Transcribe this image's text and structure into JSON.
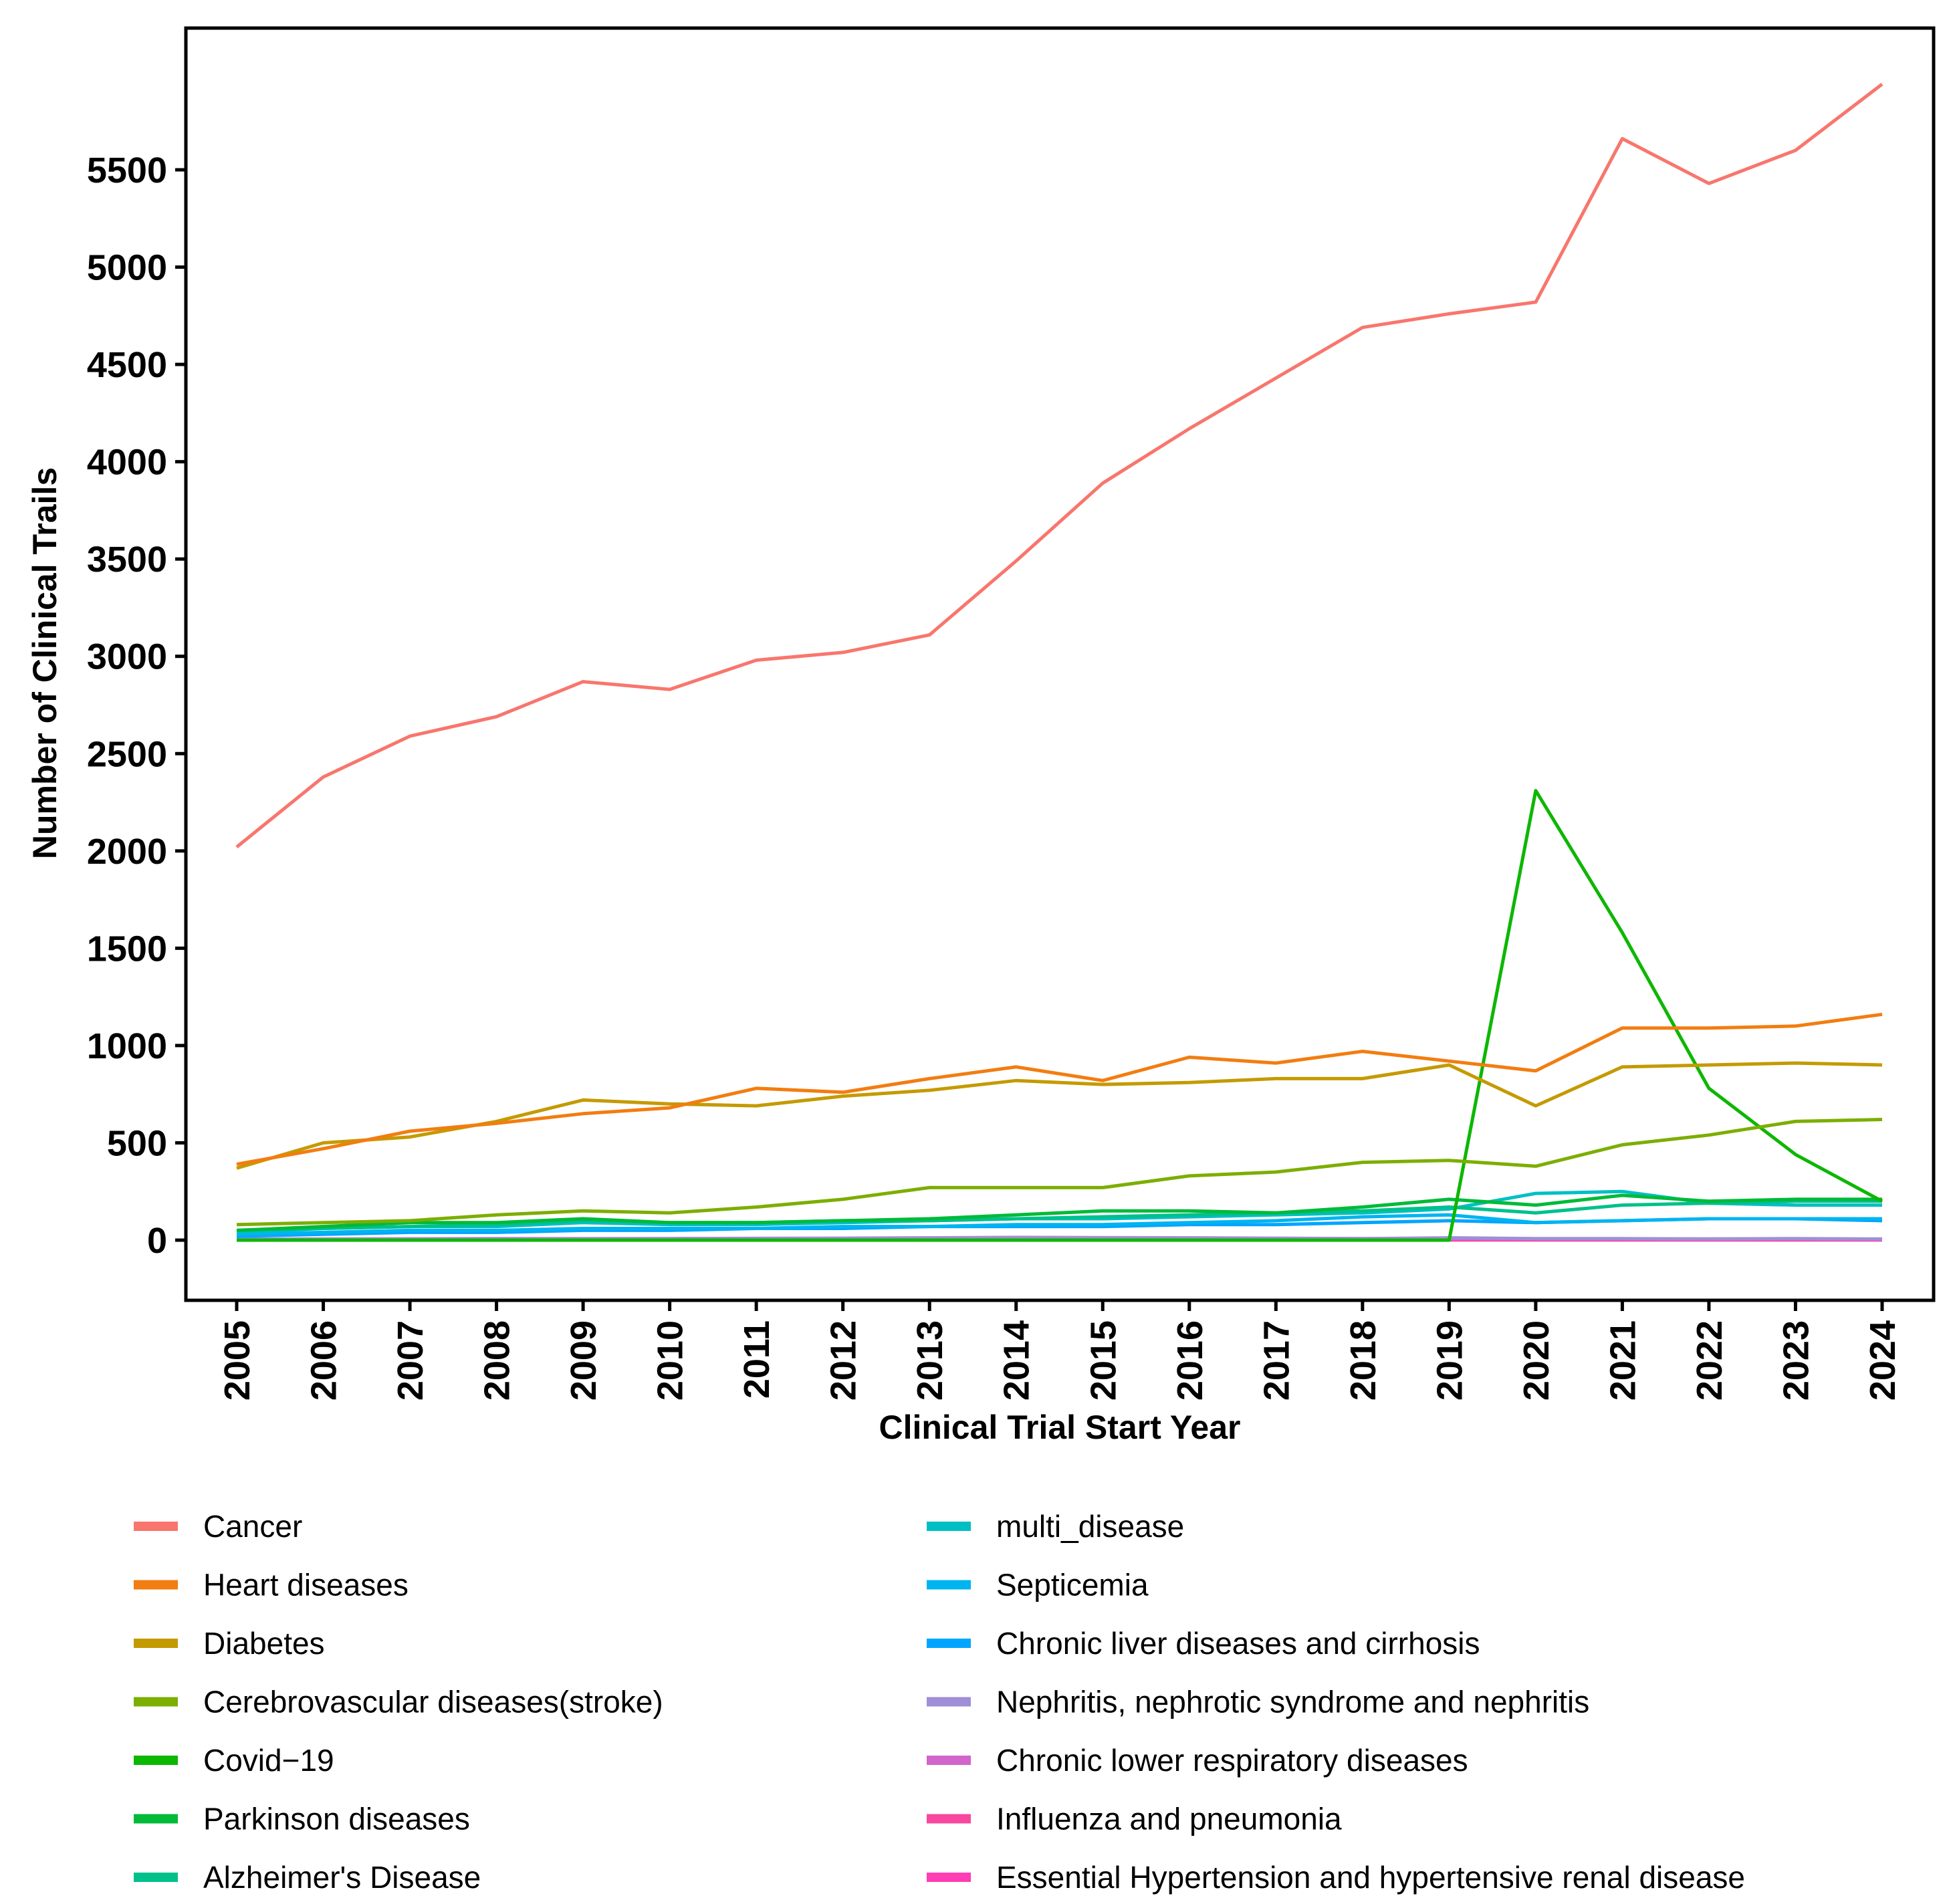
{
  "chart_data": {
    "type": "line",
    "title": "",
    "xlabel": "Clinical Trial Start Year",
    "ylabel": "Number of Clinical Trails",
    "x": [
      2005,
      2006,
      2007,
      2008,
      2009,
      2010,
      2011,
      2012,
      2013,
      2014,
      2015,
      2016,
      2017,
      2018,
      2019,
      2020,
      2021,
      2022,
      2023,
      2024
    ],
    "x_tick_labels": [
      "2005",
      "2006",
      "2007",
      "2008",
      "2009",
      "2010",
      "2011",
      "2012",
      "2013",
      "2014",
      "2015",
      "2016",
      "2017",
      "2018",
      "2019",
      "2020",
      "2021",
      "2022",
      "2023",
      "2024"
    ],
    "y_ticks": [
      0,
      500,
      1000,
      1500,
      2000,
      2500,
      3000,
      3500,
      4000,
      4500,
      5000,
      5500
    ],
    "y_tick_labels": [
      "0",
      "500",
      "1000",
      "1500",
      "2000",
      "2500",
      "3000",
      "3500",
      "4000",
      "4500",
      "5000",
      "5500"
    ],
    "ylim": [
      -300,
      6150
    ],
    "grid": false,
    "legend_position": "bottom",
    "series": [
      {
        "name": "Cancer",
        "color": "#F8766D",
        "values": [
          2020,
          2380,
          2590,
          2690,
          2870,
          2830,
          2980,
          3020,
          3110,
          3490,
          3890,
          4170,
          4430,
          4690,
          4760,
          4820,
          5660,
          5430,
          5600,
          5940
        ]
      },
      {
        "name": "Heart diseases",
        "color": "#F27D10",
        "values": [
          390,
          470,
          560,
          600,
          650,
          680,
          780,
          760,
          830,
          890,
          820,
          940,
          910,
          970,
          920,
          870,
          1090,
          1090,
          1100,
          1160
        ]
      },
      {
        "name": "Diabetes",
        "color": "#C49A00",
        "values": [
          370,
          500,
          530,
          610,
          720,
          700,
          690,
          740,
          770,
          820,
          800,
          810,
          830,
          830,
          900,
          690,
          890,
          900,
          910,
          900
        ]
      },
      {
        "name": "Cerebrovascular diseases(stroke)",
        "color": "#7CAE00",
        "values": [
          80,
          90,
          100,
          130,
          150,
          140,
          170,
          210,
          270,
          270,
          270,
          330,
          350,
          400,
          410,
          380,
          490,
          540,
          610,
          620
        ]
      },
      {
        "name": "Covid−19",
        "color": "#0CB702",
        "values": [
          0,
          0,
          0,
          0,
          0,
          0,
          0,
          0,
          0,
          0,
          0,
          0,
          0,
          0,
          0,
          2310,
          1580,
          780,
          440,
          200
        ]
      },
      {
        "name": "Parkinson diseases",
        "color": "#00BA38",
        "values": [
          50,
          70,
          90,
          90,
          110,
          90,
          90,
          100,
          110,
          130,
          150,
          150,
          140,
          170,
          210,
          180,
          230,
          200,
          210,
          210
        ]
      },
      {
        "name": "Alzheimer's Disease",
        "color": "#00C08B",
        "values": [
          50,
          60,
          70,
          80,
          100,
          90,
          90,
          100,
          100,
          110,
          120,
          130,
          140,
          150,
          170,
          140,
          180,
          190,
          200,
          200
        ]
      },
      {
        "name": "multi_disease",
        "color": "#00BFC4",
        "values": [
          40,
          60,
          70,
          70,
          90,
          80,
          80,
          90,
          100,
          110,
          110,
          120,
          130,
          140,
          160,
          240,
          250,
          190,
          180,
          180
        ]
      },
      {
        "name": "Septicemia",
        "color": "#00B4F0",
        "values": [
          30,
          40,
          50,
          50,
          60,
          60,
          60,
          70,
          70,
          80,
          80,
          90,
          100,
          120,
          130,
          90,
          100,
          110,
          110,
          110
        ]
      },
      {
        "name": "Chronic liver diseases and cirrhosis",
        "color": "#00A5FF",
        "values": [
          20,
          30,
          40,
          40,
          50,
          50,
          60,
          60,
          70,
          70,
          70,
          80,
          80,
          90,
          100,
          90,
          100,
          110,
          110,
          100
        ]
      },
      {
        "name": "Nephritis, nephrotic syndrome and nephritis",
        "color": "#9F8FD6",
        "values": [
          3,
          4,
          5,
          6,
          7,
          8,
          9,
          10,
          12,
          14,
          13,
          12,
          10,
          8,
          12,
          8,
          8,
          6,
          8,
          6
        ]
      },
      {
        "name": "Chronic lower respiratory diseases",
        "color": "#D165CC",
        "values": [
          5,
          6,
          7,
          8,
          8,
          8,
          9,
          9,
          10,
          10,
          10,
          10,
          9,
          8,
          8,
          7,
          6,
          6,
          6,
          5
        ]
      },
      {
        "name": "Influenza and pneumonia",
        "color": "#F8479E",
        "values": [
          3,
          3,
          4,
          4,
          5,
          5,
          5,
          5,
          5,
          5,
          5,
          5,
          5,
          5,
          5,
          5,
          5,
          5,
          5,
          5
        ]
      },
      {
        "name": "Essential Hypertension and hypertensive renal disease",
        "color": "#FF3DB5",
        "values": [
          1,
          1,
          1,
          1,
          1,
          1,
          1,
          1,
          1,
          1,
          1,
          1,
          1,
          1,
          1,
          1,
          1,
          1,
          1,
          1
        ]
      }
    ]
  }
}
